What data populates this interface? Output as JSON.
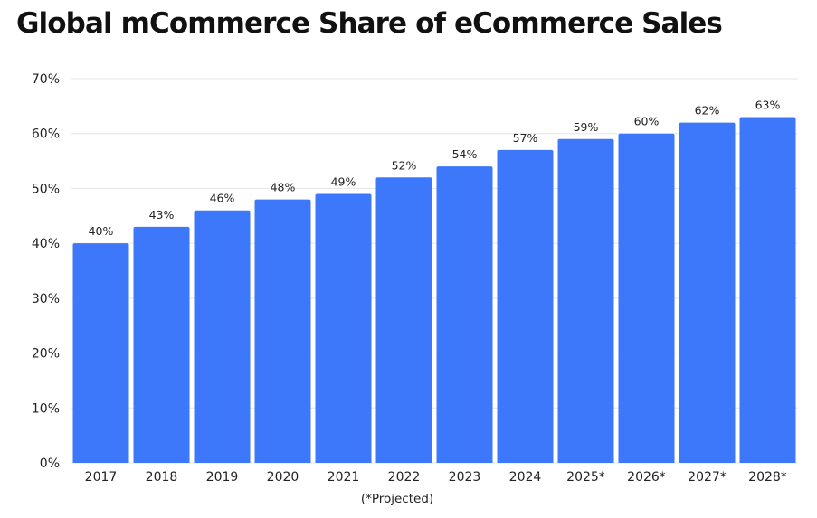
{
  "chart_data": {
    "type": "bar",
    "title": "Global mCommerce Share of eCommerce Sales",
    "xlabel": "",
    "ylabel": "",
    "footnote": "(*Projected)",
    "categories": [
      "2017",
      "2018",
      "2019",
      "2020",
      "2021",
      "2022",
      "2023",
      "2024",
      "2025*",
      "2026*",
      "2027*",
      "2028*"
    ],
    "values": [
      40,
      43,
      46,
      48,
      49,
      52,
      54,
      57,
      59,
      60,
      62,
      63
    ],
    "data_labels": [
      "40%",
      "43%",
      "46%",
      "48%",
      "49%",
      "52%",
      "54%",
      "57%",
      "59%",
      "60%",
      "62%",
      "63%"
    ],
    "ylim": [
      0,
      70
    ],
    "yticks": [
      0,
      10,
      20,
      30,
      40,
      50,
      60,
      70
    ],
    "ytick_labels": [
      "0%",
      "10%",
      "20%",
      "30%",
      "40%",
      "50%",
      "60%",
      "70%"
    ],
    "grid": true,
    "legend": "none",
    "bar_color": "#3D78FA",
    "grid_color": "#E6E6E6"
  }
}
